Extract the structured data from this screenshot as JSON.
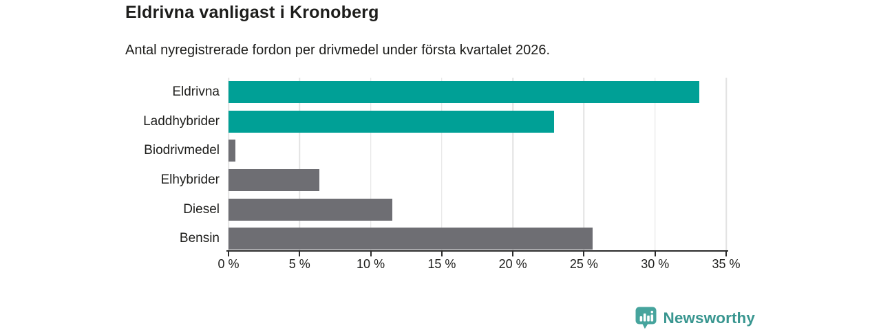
{
  "header": {
    "title": "Eldrivna vanligast i Kronoberg",
    "subtitle": "Antal nyregistrerade fordon per drivmedel under första kvartalet 2026."
  },
  "chart_data": {
    "type": "bar",
    "orientation": "horizontal",
    "title": "Eldrivna vanligast i Kronoberg",
    "subtitle": "Antal nyregistrerade fordon per drivmedel under första kvartalet 2026.",
    "categories": [
      "Eldrivna",
      "Laddhybrider",
      "Biodrivmedel",
      "Elhybrider",
      "Diesel",
      "Bensin"
    ],
    "values": [
      33.1,
      22.9,
      0.5,
      6.4,
      11.5,
      25.6
    ],
    "unit": "%",
    "xlabel": "",
    "ylabel": "",
    "xlim": [
      0,
      35
    ],
    "x_ticks": [
      0,
      5,
      10,
      15,
      20,
      25,
      30,
      35
    ],
    "x_tick_labels": [
      "0 %",
      "5 %",
      "10 %",
      "15 %",
      "20 %",
      "25 %",
      "30 %",
      "35 %"
    ],
    "bar_colors": [
      "#00a096",
      "#00a096",
      "#6e6e73",
      "#6e6e73",
      "#6e6e73",
      "#6e6e73"
    ],
    "grid": true,
    "legend": "none"
  },
  "colors": {
    "teal": "#00a096",
    "gray": "#6e6e73",
    "axis": "#2b2b2b",
    "gridline": "#e2e2e2",
    "text": "#1d1d1b",
    "logo_icon_bg": "#46a49d",
    "logo_text": "#399690"
  },
  "footer": {
    "brand": "Newsworthy",
    "logo_icon": "bar-chart-bubble-icon"
  }
}
